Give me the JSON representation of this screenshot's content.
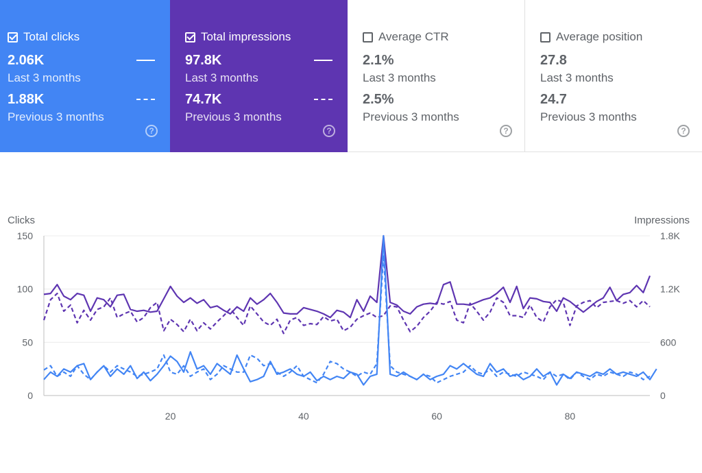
{
  "cards": {
    "clicks": {
      "label": "Total clicks",
      "current": "2.06K",
      "current_label": "Last 3 months",
      "previous": "1.88K",
      "previous_label": "Previous 3 months",
      "checked": true,
      "color": "#4285f4"
    },
    "impressions": {
      "label": "Total impressions",
      "current": "97.8K",
      "current_label": "Last 3 months",
      "previous": "74.7K",
      "previous_label": "Previous 3 months",
      "checked": true,
      "color": "#5e35b1"
    },
    "ctr": {
      "label": "Average CTR",
      "current": "2.1%",
      "current_label": "Last 3 months",
      "previous": "2.5%",
      "previous_label": "Previous 3 months",
      "checked": false
    },
    "position": {
      "label": "Average position",
      "current": "27.8",
      "current_label": "Last 3 months",
      "previous": "24.7",
      "previous_label": "Previous 3 months",
      "checked": false
    },
    "help_glyph": "?"
  },
  "chart_data": {
    "type": "line",
    "ylabel_left": "Clicks",
    "ylabel_right": "Impressions",
    "yticks_left": [
      "0",
      "50",
      "100",
      "150"
    ],
    "yticks_right": [
      "0",
      "600",
      "1.2K",
      "1.8K"
    ],
    "xticks": [
      "20",
      "40",
      "60",
      "80"
    ],
    "xlim": [
      1,
      92
    ],
    "ylim_left": [
      0,
      150
    ],
    "ylim_right": [
      0,
      1800
    ],
    "grid": true,
    "series": [
      {
        "name": "Total clicks",
        "period": "Last 3 months",
        "axis": "left",
        "style": "solid",
        "color": "#4285f4",
        "values": [
          15,
          22,
          18,
          25,
          22,
          28,
          30,
          15,
          22,
          28,
          18,
          25,
          20,
          28,
          16,
          22,
          14,
          20,
          28,
          37,
          32,
          22,
          41,
          25,
          28,
          20,
          30,
          25,
          20,
          38,
          25,
          13,
          15,
          18,
          32,
          20,
          22,
          25,
          20,
          18,
          22,
          14,
          18,
          15,
          18,
          16,
          22,
          20,
          10,
          18,
          20,
          150,
          20,
          18,
          22,
          18,
          15,
          20,
          15,
          18,
          20,
          28,
          25,
          30,
          25,
          20,
          18,
          30,
          22,
          25,
          18,
          20,
          15,
          18,
          25,
          18,
          22,
          10,
          20,
          16,
          22,
          20,
          18,
          22,
          20,
          25,
          20,
          22,
          20,
          18,
          22,
          15,
          25
        ]
      },
      {
        "name": "Total clicks",
        "period": "Previous 3 months",
        "axis": "left",
        "style": "dashed",
        "color": "#4285f4",
        "values": [
          24,
          28,
          18,
          22,
          18,
          28,
          20,
          15,
          22,
          28,
          22,
          28,
          25,
          22,
          18,
          20,
          22,
          25,
          38,
          22,
          20,
          28,
          18,
          22,
          25,
          15,
          20,
          28,
          25,
          22,
          22,
          38,
          35,
          28,
          30,
          22,
          18,
          22,
          28,
          18,
          15,
          12,
          20,
          32,
          30,
          25,
          22,
          18,
          22,
          20,
          30,
          132,
          28,
          22,
          20,
          18,
          15,
          20,
          18,
          12,
          15,
          18,
          20,
          22,
          28,
          22,
          20,
          25,
          18,
          22,
          20,
          18,
          22,
          20,
          18,
          15,
          22,
          18,
          20,
          15,
          22,
          18,
          15,
          20,
          18,
          22,
          20,
          18,
          22,
          20,
          15,
          18
        ]
      },
      {
        "name": "Total impressions",
        "period": "Last 3 months",
        "axis": "right",
        "style": "solid",
        "color": "#5e35b1",
        "values": [
          1140,
          1150,
          1250,
          1120,
          1080,
          1150,
          1130,
          950,
          1100,
          1080,
          1000,
          1130,
          1140,
          970,
          950,
          960,
          940,
          950,
          1090,
          1230,
          1120,
          1050,
          1100,
          1040,
          1080,
          990,
          1010,
          960,
          920,
          1000,
          950,
          1100,
          1030,
          1080,
          1150,
          1050,
          930,
          920,
          920,
          990,
          970,
          950,
          920,
          880,
          960,
          940,
          880,
          1080,
          950,
          1120,
          1050,
          1800,
          1050,
          1020,
          950,
          920,
          1000,
          1030,
          1040,
          1030,
          1250,
          1280,
          1030,
          1030,
          1020,
          1050,
          1080,
          1100,
          1150,
          1220,
          1050,
          1230,
          980,
          1100,
          1090,
          1060,
          1050,
          950,
          1100,
          1060,
          1000,
          940,
          1000,
          1060,
          1100,
          1220,
          1070,
          1140,
          1160,
          1240,
          1160,
          1350
        ]
      },
      {
        "name": "Total impressions",
        "period": "Previous 3 months",
        "axis": "right",
        "style": "dashed",
        "color": "#5e35b1",
        "values": [
          850,
          1080,
          1150,
          950,
          1020,
          820,
          960,
          850,
          970,
          1000,
          1100,
          880,
          920,
          950,
          830,
          880,
          990,
          1050,
          730,
          860,
          800,
          720,
          860,
          730,
          820,
          750,
          830,
          900,
          980,
          880,
          790,
          1010,
          920,
          830,
          790,
          860,
          700,
          850,
          880,
          790,
          810,
          800,
          890,
          840,
          860,
          730,
          770,
          860,
          900,
          930,
          880,
          900,
          1010,
          1000,
          850,
          720,
          780,
          880,
          950,
          1050,
          1030,
          1060,
          850,
          820,
          1040,
          950,
          850,
          940,
          1100,
          1050,
          900,
          900,
          880,
          1020,
          880,
          830,
          1000,
          1080,
          1050,
          790,
          1010,
          1050,
          1070,
          990,
          1050,
          1060,
          1070,
          1040,
          1070,
          1000,
          1070,
          1000
        ]
      }
    ]
  }
}
